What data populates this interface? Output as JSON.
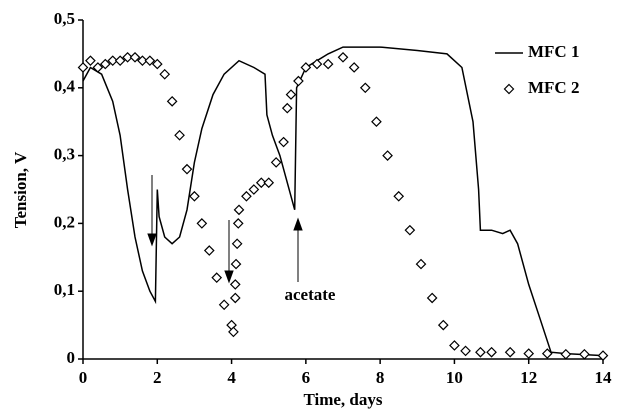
{
  "chart_data": {
    "type": "line",
    "xlabel": "Time, days",
    "ylabel": "Tension, V",
    "annotation": "acetate",
    "xlim": [
      0,
      14
    ],
    "ylim": [
      0,
      0.5
    ],
    "xticks": [
      0,
      2,
      4,
      6,
      8,
      10,
      12,
      14
    ],
    "yticks": [
      0,
      {
        "value": 0.1,
        "label": "0,1"
      },
      {
        "value": 0.2,
        "label": "0,2"
      },
      {
        "value": 0.3,
        "label": "0,3"
      },
      {
        "value": 0.4,
        "label": "0,4"
      },
      {
        "value": 0.5,
        "label": "0,5"
      }
    ],
    "grid": false,
    "legend": "top-right",
    "series": [
      {
        "name": "MFC 1",
        "color": "#000000",
        "marker": "none",
        "x": [
          0,
          0.2,
          0.5,
          0.8,
          1,
          1.2,
          1.4,
          1.6,
          1.8,
          1.95,
          2.0,
          2.05,
          2.2,
          2.4,
          2.6,
          2.8,
          3.0,
          3.2,
          3.5,
          3.8,
          4.2,
          4.6,
          4.9,
          4.95,
          5.1,
          5.3,
          5.5,
          5.7,
          5.75,
          6.0,
          6.3,
          6.6,
          7,
          8,
          9,
          9.8,
          10.2,
          10.5,
          10.65,
          10.7,
          11,
          11.3,
          11.5,
          11.7,
          12,
          12.3,
          12.6,
          13,
          14
        ],
        "values": [
          0.41,
          0.43,
          0.42,
          0.38,
          0.33,
          0.25,
          0.18,
          0.13,
          0.1,
          0.085,
          0.25,
          0.21,
          0.18,
          0.17,
          0.18,
          0.22,
          0.29,
          0.34,
          0.39,
          0.42,
          0.44,
          0.43,
          0.42,
          0.36,
          0.33,
          0.3,
          0.26,
          0.22,
          0.4,
          0.43,
          0.44,
          0.45,
          0.46,
          0.46,
          0.455,
          0.45,
          0.43,
          0.35,
          0.25,
          0.19,
          0.19,
          0.185,
          0.19,
          0.17,
          0.11,
          0.06,
          0.01,
          0.008,
          0.005
        ]
      },
      {
        "name": "MFC 2",
        "color": "#000000",
        "marker": "diamond",
        "x": [
          0,
          0.2,
          0.4,
          0.6,
          0.8,
          1.0,
          1.2,
          1.4,
          1.6,
          1.8,
          2.0,
          2.2,
          2.4,
          2.6,
          2.8,
          3.0,
          3.2,
          3.4,
          3.6,
          3.8,
          4.0,
          4.05,
          4.1,
          4.1,
          4.12,
          4.15,
          4.18,
          4.2,
          4.4,
          4.6,
          4.8,
          5.0,
          5.2,
          5.4,
          5.5,
          5.6,
          5.8,
          6.0,
          6.3,
          6.6,
          7.0,
          7.3,
          7.6,
          7.9,
          8.2,
          8.5,
          8.8,
          9.1,
          9.4,
          9.7,
          10.0,
          10.3,
          10.7,
          11,
          11.5,
          12,
          12.5,
          13,
          13.5,
          14
        ],
        "values": [
          0.43,
          0.44,
          0.43,
          0.435,
          0.44,
          0.44,
          0.445,
          0.445,
          0.44,
          0.44,
          0.435,
          0.42,
          0.38,
          0.33,
          0.28,
          0.24,
          0.2,
          0.16,
          0.12,
          0.08,
          0.05,
          0.04,
          0.09,
          0.11,
          0.14,
          0.17,
          0.2,
          0.22,
          0.24,
          0.25,
          0.26,
          0.26,
          0.29,
          0.32,
          0.37,
          0.39,
          0.41,
          0.43,
          0.435,
          0.435,
          0.445,
          0.43,
          0.4,
          0.35,
          0.3,
          0.24,
          0.19,
          0.14,
          0.09,
          0.05,
          0.02,
          0.012,
          0.01,
          0.01,
          0.01,
          0.008,
          0.008,
          0.007,
          0.007,
          0.005
        ]
      }
    ]
  }
}
